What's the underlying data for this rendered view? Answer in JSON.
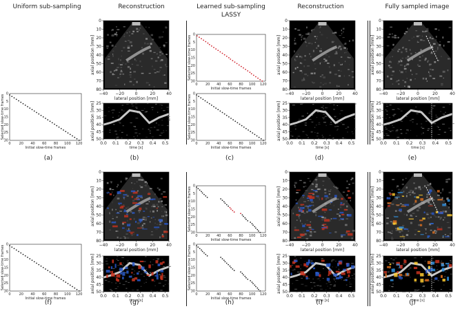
{
  "headers": {
    "col1": "Uniform sub-sampling",
    "col2": "Reconstruction",
    "col3_line1": "Learned sub-sampling",
    "col3_line2": "LASSY",
    "col4": "Reconstruction",
    "col5": "Fully sampled image"
  },
  "panel_labels": [
    "(a)",
    "(b)",
    "(c)",
    "(d)",
    "(e)",
    "(f)",
    "(g)",
    "(h)",
    "(i)",
    "(j)"
  ],
  "axis": {
    "axial_mm": "axial position [mm]",
    "lateral_mm": "lateral position [mm]",
    "time_s": "time [s]",
    "selected_frames": "Selected slow-time frames",
    "initial_frames": "Initial slow-time frames",
    "bmode_y_ticks": [
      "0",
      "10",
      "20",
      "30",
      "40",
      "50",
      "60",
      "70",
      "80"
    ],
    "bmode_x_ticks": [
      "−40",
      "−20",
      "0",
      "20",
      "40"
    ],
    "mmode_y_ticks": [
      "25",
      "30",
      "35",
      "40",
      "45",
      "50"
    ],
    "mmode_x_ticks": [
      "0.0",
      "0.1",
      "0.2",
      "0.3",
      "0.4",
      "0.5"
    ],
    "sel_y_ticks": [
      "0",
      "5",
      "10",
      "15",
      "20",
      "25",
      "30"
    ],
    "sel_x_ticks": [
      "0",
      "20",
      "40",
      "60",
      "80",
      "100",
      "120"
    ]
  },
  "colors": {
    "background": "#ffffff",
    "selected_marker": "#d0202a",
    "default_marker": "#222222",
    "doppler_red": "#c8321e",
    "doppler_blue": "#2858c8"
  },
  "chart_data": [
    {
      "type": "scatter",
      "panel": "a",
      "xlabel": "Initial slow-time frames",
      "ylabel": "Selected slow-time frames",
      "x_range": [
        0,
        128
      ],
      "y_range": [
        0,
        32
      ],
      "points": "uniform: every 4th frame, 32 selected"
    },
    {
      "type": "scatter",
      "panel": "c",
      "xlabel": "Initial slow-time frames",
      "ylabel": "Selected slow-time frames",
      "x_range": [
        0,
        128
      ],
      "y_range": [
        0,
        32
      ],
      "points": "learned: near-uniform selection"
    },
    {
      "type": "scatter",
      "panel": "f",
      "xlabel": "Initial slow-time frames",
      "ylabel": "Selected slow-time frames",
      "x_range": [
        0,
        128
      ],
      "y_range": [
        0,
        32
      ],
      "points": "uniform: every 4th frame"
    },
    {
      "type": "scatter",
      "panel": "h",
      "xlabel": "Initial slow-time frames",
      "ylabel": "Selected slow-time frames",
      "x_range": [
        0,
        128
      ],
      "y_range": [
        0,
        32
      ],
      "points": "learned: clustered selection around frames 0-20, 45-70, 85-110"
    }
  ]
}
